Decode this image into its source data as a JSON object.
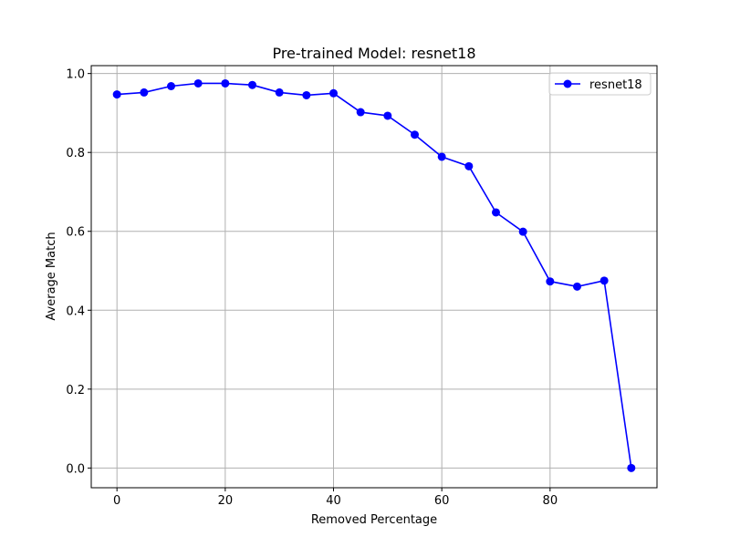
{
  "chart_data": {
    "type": "line",
    "title": "Pre-trained Model: resnet18",
    "xlabel": "Removed Percentage",
    "ylabel": "Average Match",
    "xlim": [
      -4.75,
      99.75
    ],
    "ylim": [
      -0.05,
      1.02
    ],
    "xticks": [
      0,
      20,
      40,
      60,
      80
    ],
    "yticks": [
      0.0,
      0.2,
      0.4,
      0.6,
      0.8,
      1.0
    ],
    "grid": true,
    "legend_position": "top-right",
    "series": [
      {
        "name": "resnet18",
        "color": "#0000ff",
        "marker": "circle",
        "x": [
          0,
          5,
          10,
          15,
          20,
          25,
          30,
          35,
          40,
          45,
          50,
          55,
          60,
          65,
          70,
          75,
          80,
          85,
          90,
          95
        ],
        "y": [
          0.947,
          0.952,
          0.968,
          0.975,
          0.975,
          0.971,
          0.952,
          0.945,
          0.95,
          0.902,
          0.893,
          0.845,
          0.789,
          0.765,
          0.648,
          0.599,
          0.473,
          0.46,
          0.475,
          0.0
        ]
      }
    ]
  }
}
